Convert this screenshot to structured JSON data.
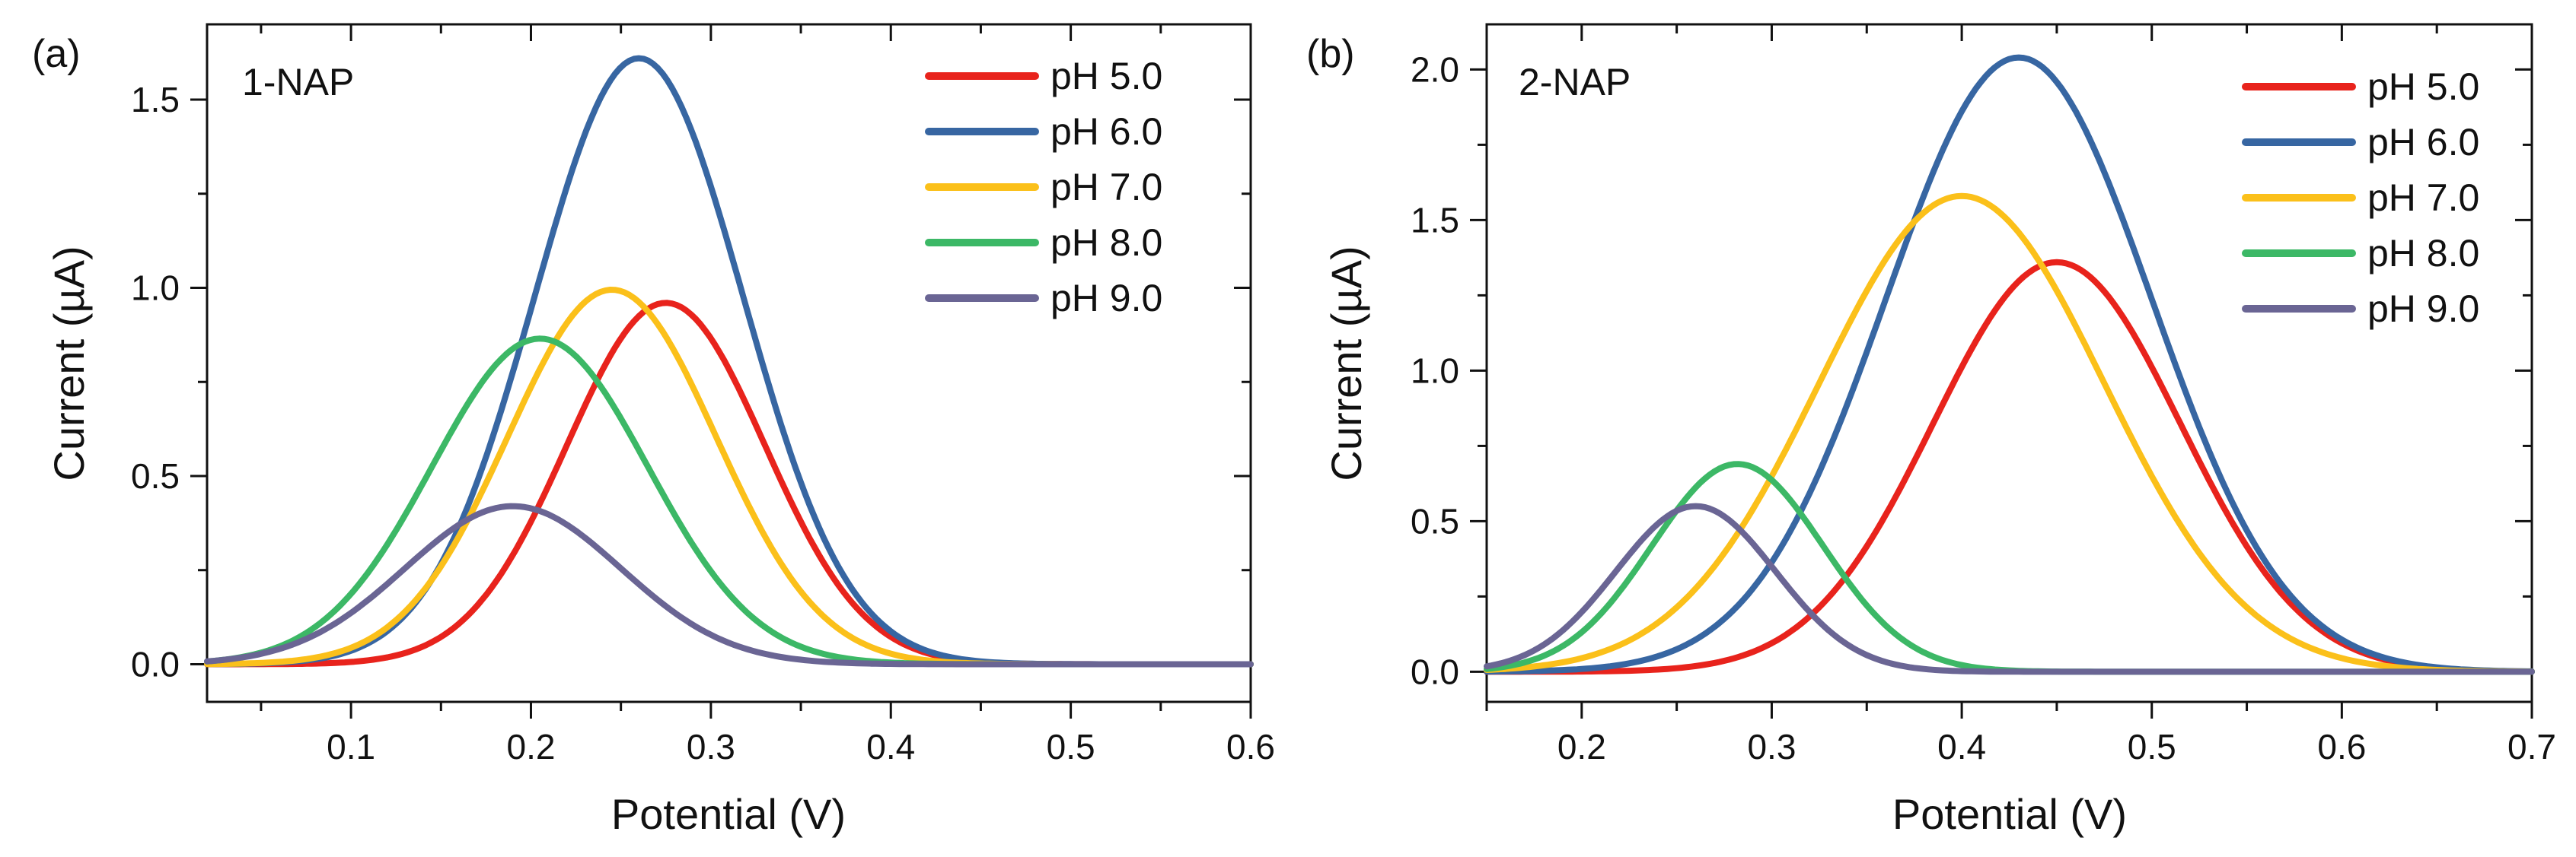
{
  "chart_data": [
    {
      "type": "line",
      "panel_label": "(a)",
      "title": "1-NAP",
      "xlabel": "Potential (V)",
      "ylabel": "Current (µA)",
      "xlim": [
        0.02,
        0.6
      ],
      "ylim": [
        -0.1,
        1.7
      ],
      "xticks": [
        0.1,
        0.2,
        0.3,
        0.4,
        0.5,
        0.6
      ],
      "xtick_labels": [
        "0.1",
        "0.2",
        "0.3",
        "0.4",
        "0.5",
        "0.6"
      ],
      "yticks": [
        0.0,
        0.5,
        1.0,
        1.5
      ],
      "ytick_labels": [
        "0.0",
        "0.5",
        "1.0",
        "1.5"
      ],
      "legend_position": "top-right",
      "series": [
        {
          "name": "pH 5.0",
          "color": "#e8231c",
          "peak_x": 0.275,
          "peak_y": 0.96,
          "sigma": 0.055,
          "x_start": 0.02,
          "x_end": 0.6
        },
        {
          "name": "pH 6.0",
          "color": "#3766a2",
          "peak_x": 0.26,
          "peak_y": 1.61,
          "sigma": 0.058,
          "x_start": 0.02,
          "x_end": 0.6
        },
        {
          "name": "pH 7.0",
          "color": "#fbc01a",
          "peak_x": 0.245,
          "peak_y": 0.995,
          "sigma": 0.058,
          "x_start": 0.02,
          "x_end": 0.6
        },
        {
          "name": "pH 8.0",
          "color": "#3cb866",
          "peak_x": 0.205,
          "peak_y": 0.865,
          "sigma": 0.06,
          "x_start": 0.02,
          "x_end": 0.6
        },
        {
          "name": "pH 9.0",
          "color": "#6a6594",
          "peak_x": 0.19,
          "peak_y": 0.42,
          "sigma": 0.06,
          "x_start": 0.02,
          "x_end": 0.6
        }
      ]
    },
    {
      "type": "line",
      "panel_label": "(b)",
      "title": "2-NAP",
      "xlabel": "Potential (V)",
      "ylabel": "Current (µA)",
      "xlim": [
        0.15,
        0.7
      ],
      "ylim": [
        -0.1,
        2.15
      ],
      "xticks": [
        0.2,
        0.3,
        0.4,
        0.5,
        0.6,
        0.7
      ],
      "xtick_labels": [
        "0.2",
        "0.3",
        "0.4",
        "0.5",
        "0.6",
        "0.7"
      ],
      "yticks": [
        0.0,
        0.5,
        1.0,
        1.5,
        2.0
      ],
      "ytick_labels": [
        "0.0",
        "0.5",
        "1.0",
        "1.5",
        "2.0"
      ],
      "legend_position": "top-right",
      "series": [
        {
          "name": "pH 5.0",
          "color": "#e8231c",
          "peak_x": 0.45,
          "peak_y": 1.36,
          "sigma": 0.065,
          "x_start": 0.15,
          "x_end": 0.7
        },
        {
          "name": "pH 6.0",
          "color": "#3766a2",
          "peak_x": 0.43,
          "peak_y": 2.04,
          "sigma": 0.07,
          "x_start": 0.15,
          "x_end": 0.7
        },
        {
          "name": "pH 7.0",
          "color": "#fbc01a",
          "peak_x": 0.4,
          "peak_y": 1.58,
          "sigma": 0.075,
          "x_start": 0.15,
          "x_end": 0.7
        },
        {
          "name": "pH 8.0",
          "color": "#3cb866",
          "peak_x": 0.282,
          "peak_y": 0.69,
          "sigma": 0.045,
          "x_start": 0.15,
          "x_end": 0.7
        },
        {
          "name": "pH 9.0",
          "color": "#6a6594",
          "peak_x": 0.26,
          "peak_y": 0.55,
          "sigma": 0.042,
          "x_start": 0.15,
          "x_end": 0.7
        }
      ]
    }
  ]
}
